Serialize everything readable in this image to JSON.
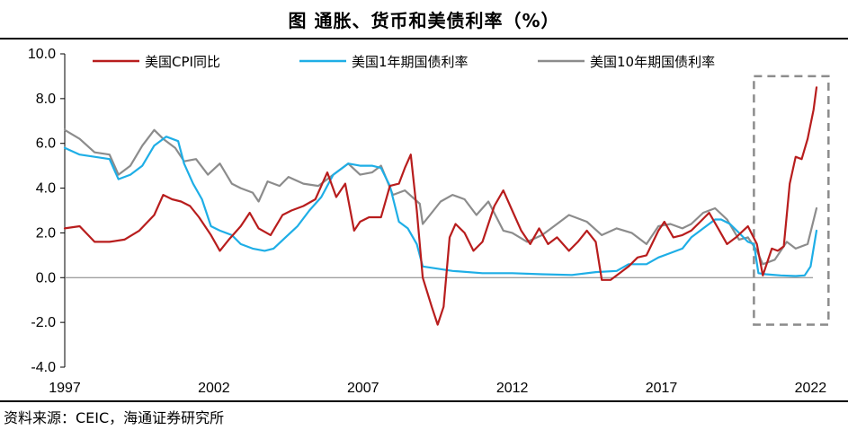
{
  "title": "图  通胀、货币和美债利率（%）",
  "source": "资料来源：CEIC，海通证券研究所",
  "colors": {
    "cpi": "#b81d1d",
    "y1": "#1eaee6",
    "y10": "#8c8c8c",
    "box": "#8c8c8c"
  },
  "chart_data": {
    "type": "line",
    "title": "通胀、货币和美债利率（%）",
    "xlabel": "",
    "ylabel": "%",
    "xlim": [
      1997,
      2022.5
    ],
    "ylim": [
      -4.0,
      10.0
    ],
    "x_ticks": [
      "1997",
      "2002",
      "2007",
      "2012",
      "2017",
      "2022"
    ],
    "x_tick_values": [
      1997,
      2002,
      2007,
      2012,
      2017,
      2022
    ],
    "y_ticks": [
      "10.0",
      "8.0",
      "6.0",
      "4.0",
      "2.0",
      "0.0",
      "-2.0",
      "-4.0"
    ],
    "y_tick_values": [
      10,
      8,
      6,
      4,
      2,
      0,
      -2,
      -4
    ],
    "highlight_box": {
      "x_range": [
        2020.1,
        2022.6
      ],
      "y_range": [
        -2.1,
        9.0
      ]
    },
    "series": [
      {
        "name": "美国CPI同比",
        "key": "cpi",
        "x": [
          1997.0,
          1997.5,
          1998.0,
          1998.5,
          1999.0,
          1999.5,
          2000.0,
          2000.3,
          2000.6,
          2000.9,
          2001.2,
          2001.5,
          2001.9,
          2002.2,
          2002.5,
          2002.9,
          2003.2,
          2003.5,
          2003.9,
          2004.3,
          2004.6,
          2005.0,
          2005.4,
          2005.7,
          2005.8,
          2006.1,
          2006.4,
          2006.7,
          2006.9,
          2007.2,
          2007.6,
          2007.9,
          2008.2,
          2008.4,
          2008.6,
          2008.8,
          2009.0,
          2009.3,
          2009.5,
          2009.7,
          2009.9,
          2010.1,
          2010.4,
          2010.7,
          2011.0,
          2011.4,
          2011.7,
          2012.0,
          2012.3,
          2012.6,
          2012.9,
          2013.2,
          2013.5,
          2013.9,
          2014.2,
          2014.5,
          2014.8,
          2015.0,
          2015.3,
          2015.6,
          2015.9,
          2016.2,
          2016.5,
          2016.9,
          2017.1,
          2017.4,
          2017.7,
          2018.0,
          2018.3,
          2018.6,
          2018.9,
          2019.2,
          2019.5,
          2019.9,
          2020.2,
          2020.4,
          2020.7,
          2020.9,
          2021.1,
          2021.3,
          2021.5,
          2021.7,
          2021.9,
          2022.1,
          2022.2
        ],
        "values": [
          2.2,
          2.3,
          1.6,
          1.6,
          1.7,
          2.1,
          2.8,
          3.7,
          3.5,
          3.4,
          3.2,
          2.7,
          1.9,
          1.2,
          1.7,
          2.3,
          2.9,
          2.2,
          1.9,
          2.8,
          3.0,
          3.2,
          3.5,
          4.4,
          4.7,
          3.6,
          4.2,
          2.1,
          2.5,
          2.7,
          2.7,
          4.1,
          4.2,
          4.9,
          5.5,
          3.0,
          0.0,
          -1.3,
          -2.1,
          -1.3,
          1.8,
          2.4,
          2.0,
          1.2,
          1.6,
          3.2,
          3.9,
          3.0,
          2.1,
          1.5,
          2.2,
          1.5,
          1.8,
          1.2,
          1.6,
          2.1,
          1.6,
          -0.1,
          -0.1,
          0.2,
          0.5,
          0.9,
          1.0,
          2.1,
          2.5,
          1.8,
          1.9,
          2.1,
          2.5,
          2.9,
          2.2,
          1.5,
          1.8,
          2.3,
          1.5,
          0.1,
          1.3,
          1.2,
          1.4,
          4.2,
          5.4,
          5.3,
          6.2,
          7.5,
          8.5
        ]
      },
      {
        "name": "美国1年期国债利率",
        "key": "y1",
        "x": [
          1997.0,
          1997.5,
          1998.0,
          1998.5,
          1998.8,
          1999.2,
          1999.6,
          2000.0,
          2000.4,
          2000.8,
          2001.0,
          2001.3,
          2001.6,
          2001.9,
          2002.2,
          2002.6,
          2002.9,
          2003.3,
          2003.7,
          2004.0,
          2004.4,
          2004.8,
          2005.2,
          2005.6,
          2006.0,
          2006.5,
          2006.9,
          2007.3,
          2007.6,
          2007.9,
          2008.2,
          2008.5,
          2008.8,
          2009.0,
          2009.5,
          2010.0,
          2011.0,
          2012.0,
          2013.0,
          2014.0,
          2014.8,
          2015.5,
          2015.9,
          2016.5,
          2016.9,
          2017.3,
          2017.7,
          2018.0,
          2018.4,
          2018.8,
          2019.0,
          2019.3,
          2019.6,
          2019.9,
          2020.1,
          2020.25,
          2020.5,
          2021.0,
          2021.5,
          2021.8,
          2022.0,
          2022.2
        ],
        "values": [
          5.8,
          5.5,
          5.4,
          5.3,
          4.4,
          4.6,
          5.0,
          5.9,
          6.3,
          6.1,
          5.1,
          4.2,
          3.5,
          2.3,
          2.1,
          1.9,
          1.5,
          1.3,
          1.2,
          1.3,
          1.8,
          2.3,
          3.0,
          3.6,
          4.6,
          5.1,
          5.0,
          5.0,
          4.9,
          4.1,
          2.5,
          2.2,
          1.5,
          0.5,
          0.4,
          0.3,
          0.2,
          0.2,
          0.15,
          0.12,
          0.25,
          0.3,
          0.6,
          0.6,
          0.9,
          1.1,
          1.3,
          1.8,
          2.2,
          2.6,
          2.6,
          2.4,
          2.0,
          1.6,
          1.5,
          0.2,
          0.15,
          0.1,
          0.07,
          0.1,
          0.5,
          2.1
        ]
      },
      {
        "name": "美国10年期国债利率",
        "key": "y10",
        "x": [
          1997.0,
          1997.5,
          1998.0,
          1998.5,
          1998.8,
          1999.2,
          1999.6,
          2000.0,
          2000.3,
          2000.7,
          2001.0,
          2001.4,
          2001.8,
          2002.2,
          2002.6,
          2002.9,
          2003.3,
          2003.5,
          2003.8,
          2004.2,
          2004.5,
          2005.0,
          2005.5,
          2006.0,
          2006.5,
          2006.9,
          2007.3,
          2007.6,
          2008.0,
          2008.4,
          2008.9,
          2009.0,
          2009.3,
          2009.6,
          2010.0,
          2010.4,
          2010.8,
          2011.2,
          2011.7,
          2012.0,
          2012.5,
          2013.0,
          2013.5,
          2013.9,
          2014.5,
          2015.0,
          2015.5,
          2016.0,
          2016.5,
          2016.9,
          2017.3,
          2017.7,
          2018.0,
          2018.4,
          2018.8,
          2019.2,
          2019.6,
          2019.9,
          2020.2,
          2020.4,
          2020.8,
          2021.2,
          2021.5,
          2021.9,
          2022.2
        ],
        "values": [
          6.6,
          6.2,
          5.6,
          5.5,
          4.6,
          5.0,
          5.9,
          6.6,
          6.2,
          5.8,
          5.2,
          5.3,
          4.6,
          5.1,
          4.2,
          4.0,
          3.8,
          3.4,
          4.3,
          4.1,
          4.5,
          4.2,
          4.1,
          4.6,
          5.1,
          4.6,
          4.7,
          5.0,
          3.7,
          3.9,
          3.3,
          2.4,
          2.9,
          3.4,
          3.7,
          3.5,
          2.8,
          3.4,
          2.1,
          2.0,
          1.6,
          1.9,
          2.4,
          2.8,
          2.5,
          1.9,
          2.2,
          2.0,
          1.5,
          2.3,
          2.4,
          2.2,
          2.4,
          2.9,
          3.1,
          2.6,
          1.7,
          1.8,
          1.2,
          0.6,
          0.8,
          1.6,
          1.3,
          1.5,
          3.1
        ]
      }
    ]
  },
  "legend": [
    {
      "label": "美国CPI同比",
      "key": "cpi"
    },
    {
      "label": "美国1年期国债利率",
      "key": "y1"
    },
    {
      "label": "美国10年期国债利率",
      "key": "y10"
    }
  ]
}
